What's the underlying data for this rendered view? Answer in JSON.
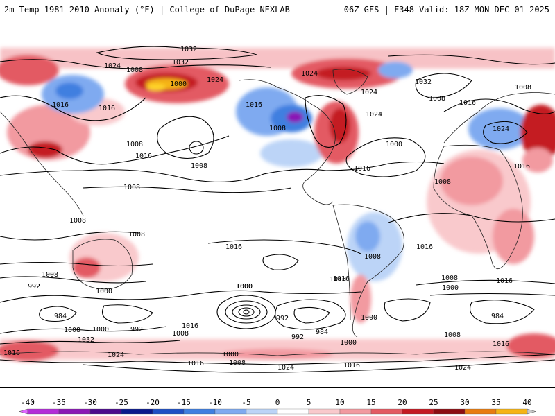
{
  "header": {
    "left": "2m Temp 1981-2010 Anomaly (°F) | College of DuPage NEXLAB",
    "right": "06Z GFS | F348 Valid: 18Z MON DEC 01 2025"
  },
  "legend": {
    "ticks": [
      "-40",
      "-35",
      "-30",
      "-25",
      "-20",
      "-15",
      "-10",
      "-5",
      "0",
      "5",
      "10",
      "15",
      "20",
      "25",
      "30",
      "35",
      "40"
    ],
    "colors": [
      "#e066ff",
      "#b32dd8",
      "#8a18b5",
      "#4b0a8c",
      "#0a1a8c",
      "#1f4fc4",
      "#3f7fe0",
      "#7faaf0",
      "#bcd4f7",
      "#ffffff",
      "#f9c9cc",
      "#f29aa0",
      "#e35a63",
      "#c41a22",
      "#8c0d12",
      "#e87c10",
      "#f5b415",
      "#ffd42a",
      "#c8c8c8"
    ]
  },
  "map": {
    "isobar_labels": [
      "1032",
      "1024",
      "1008",
      "1000",
      "1024",
      "1032",
      "1024",
      "1032",
      "1024",
      "1008",
      "1016",
      "1024",
      "1016",
      "1008",
      "1024",
      "1016",
      "1000",
      "1008",
      "1016",
      "1016",
      "1008",
      "1008",
      "1008",
      "1016",
      "1008",
      "1008",
      "1016",
      "1008",
      "1016",
      "1008",
      "1016",
      "1000",
      "1008",
      "992",
      "1000",
      "984",
      "992",
      "1008",
      "1000",
      "992",
      "1032",
      "1024",
      "1016",
      "1016",
      "1000",
      "992",
      "984",
      "1000",
      "1008",
      "1016",
      "1000",
      "1016",
      "1016",
      "1000",
      "1008",
      "1024",
      "1008",
      "1016",
      "1016",
      "1024",
      "984",
      "1008",
      "1000",
      "1016",
      "992"
    ]
  }
}
